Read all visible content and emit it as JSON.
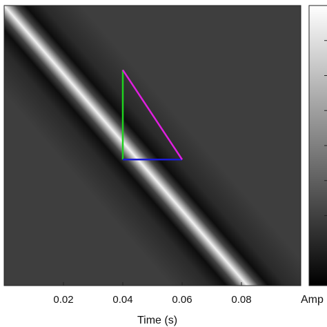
{
  "chart_data": {
    "type": "heatmap",
    "title": "",
    "xlabel": "Time (s)",
    "ylabel": "",
    "xlim": [
      0.0,
      0.1
    ],
    "x_ticks": [
      "0.02",
      "0.04",
      "0.06",
      "0.08"
    ],
    "x_tick_values": [
      0.02,
      0.04,
      0.06,
      0.08
    ],
    "colormap": "gray",
    "colorbar": {
      "label": "Amp",
      "position": "right"
    },
    "ridge": {
      "description_values": "bright diagonal band",
      "x_start": 0.0,
      "x_end": 0.082,
      "y_start_frac": 1.0,
      "y_end_frac": 0.0
    },
    "annotations": [
      {
        "name": "vertical-leg",
        "color": "#1fd11f",
        "x": [
          0.04,
          0.04
        ],
        "y_frac": [
          0.77,
          0.45
        ]
      },
      {
        "name": "horizontal-leg",
        "color": "#1a1ad6",
        "x": [
          0.04,
          0.06
        ],
        "y_frac": [
          0.45,
          0.45
        ]
      },
      {
        "name": "hypotenuse",
        "color": "#e01fe0",
        "x": [
          0.04,
          0.06
        ],
        "y_frac": [
          0.77,
          0.45
        ]
      }
    ]
  }
}
